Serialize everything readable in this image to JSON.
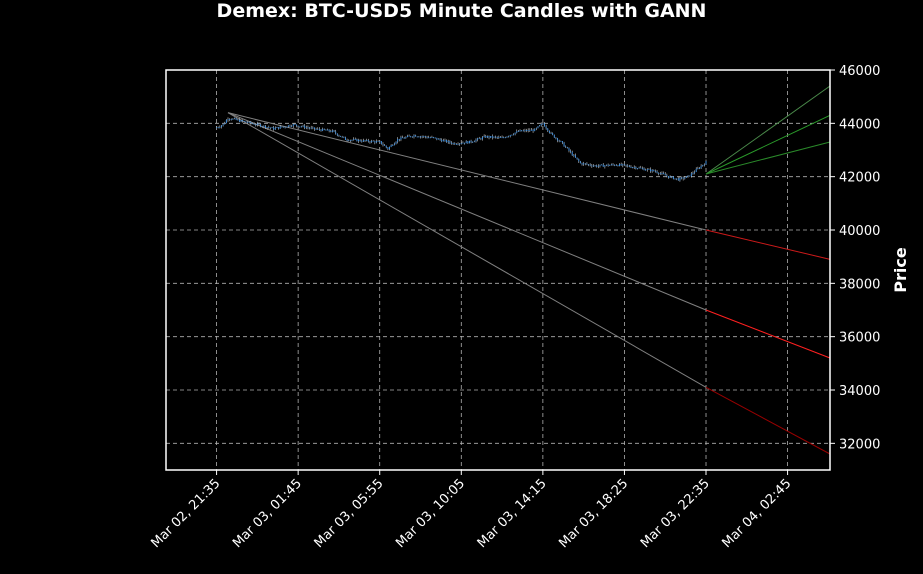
{
  "chart_data": {
    "type": "candlestick",
    "title": "Demex: BTC-USD5 Minute Candles with GANN",
    "xlabel": "",
    "ylabel": "Price",
    "y_axis_side": "right",
    "ylim": [
      31000,
      46000
    ],
    "yticks": [
      32000,
      34000,
      36000,
      38000,
      40000,
      42000,
      44000,
      46000
    ],
    "x_time_range": [
      "2024-03-02T19:00",
      "2024-03-04T04:55"
    ],
    "xticks": [
      {
        "time": "2024-03-02T21:35",
        "label": "Mar 02, 21:35"
      },
      {
        "time": "2024-03-03T01:45",
        "label": "Mar 03, 01:45"
      },
      {
        "time": "2024-03-03T05:55",
        "label": "Mar 03, 05:55"
      },
      {
        "time": "2024-03-03T10:05",
        "label": "Mar 03, 10:05"
      },
      {
        "time": "2024-03-03T14:15",
        "label": "Mar 03, 14:15"
      },
      {
        "time": "2024-03-03T18:25",
        "label": "Mar 03, 18:25"
      },
      {
        "time": "2024-03-03T22:35",
        "label": "Mar 03, 22:35"
      },
      {
        "time": "2024-03-04T02:45",
        "label": "Mar 04, 02:45"
      }
    ],
    "grid": true,
    "price_path": [
      {
        "time": "2024-03-02T21:35",
        "price": 43850
      },
      {
        "time": "2024-03-02T21:55",
        "price": 43950
      },
      {
        "time": "2024-03-02T22:10",
        "price": 44200
      },
      {
        "time": "2024-03-02T22:45",
        "price": 44100
      },
      {
        "time": "2024-03-02T23:40",
        "price": 43950
      },
      {
        "time": "2024-03-03T00:30",
        "price": 43800
      },
      {
        "time": "2024-03-03T01:30",
        "price": 43950
      },
      {
        "time": "2024-03-03T02:30",
        "price": 43800
      },
      {
        "time": "2024-03-03T03:30",
        "price": 43700
      },
      {
        "time": "2024-03-03T04:10",
        "price": 43400
      },
      {
        "time": "2024-03-03T05:00",
        "price": 43350
      },
      {
        "time": "2024-03-03T05:55",
        "price": 43300
      },
      {
        "time": "2024-03-03T06:20",
        "price": 43050
      },
      {
        "time": "2024-03-03T06:50",
        "price": 43400
      },
      {
        "time": "2024-03-03T07:40",
        "price": 43550
      },
      {
        "time": "2024-03-03T08:40",
        "price": 43450
      },
      {
        "time": "2024-03-03T09:40",
        "price": 43250
      },
      {
        "time": "2024-03-03T10:30",
        "price": 43300
      },
      {
        "time": "2024-03-03T11:20",
        "price": 43500
      },
      {
        "time": "2024-03-03T12:10",
        "price": 43450
      },
      {
        "time": "2024-03-03T13:00",
        "price": 43700
      },
      {
        "time": "2024-03-03T13:50",
        "price": 43750
      },
      {
        "time": "2024-03-03T14:15",
        "price": 44000
      },
      {
        "time": "2024-03-03T14:40",
        "price": 43600
      },
      {
        "time": "2024-03-03T15:10",
        "price": 43300
      },
      {
        "time": "2024-03-03T15:40",
        "price": 42900
      },
      {
        "time": "2024-03-03T16:10",
        "price": 42500
      },
      {
        "time": "2024-03-03T17:00",
        "price": 42400
      },
      {
        "time": "2024-03-03T18:00",
        "price": 42450
      },
      {
        "time": "2024-03-03T19:00",
        "price": 42350
      },
      {
        "time": "2024-03-03T20:00",
        "price": 42200
      },
      {
        "time": "2024-03-03T20:40",
        "price": 42000
      },
      {
        "time": "2024-03-03T21:10",
        "price": 41900
      },
      {
        "time": "2024-03-03T21:40",
        "price": 42000
      },
      {
        "time": "2024-03-03T22:10",
        "price": 42300
      },
      {
        "time": "2024-03-03T22:35",
        "price": 42550
      }
    ],
    "gann_fan": {
      "origin": {
        "time": "2024-03-02T22:10",
        "price": 44400
      },
      "split_time": "2024-03-03T22:35",
      "end_time": "2024-03-04T04:55",
      "lines": [
        {
          "end_price": 38900,
          "split_price": 40000,
          "history_color": "#808080",
          "projection_color": "#cc1a1a"
        },
        {
          "end_price": 35200,
          "split_price": 37000,
          "history_color": "#808080",
          "projection_color": "#ff2020"
        },
        {
          "end_price": 31600,
          "split_price": 34100,
          "history_color": "#808080",
          "projection_color": "#990000"
        }
      ],
      "up_fan": {
        "origin": {
          "time": "2024-03-03T22:35",
          "price": 42100
        },
        "end_prices": [
          45400,
          44300,
          43300
        ],
        "colors": [
          "#4a8a4a",
          "#2a9a2a",
          "#2a8a2a"
        ]
      }
    },
    "colors": {
      "candle": "#3d8fdf",
      "wick": "#cfcfcf",
      "grid": "#b0b0b0",
      "frame": "#ffffff",
      "background": "#000000"
    }
  }
}
